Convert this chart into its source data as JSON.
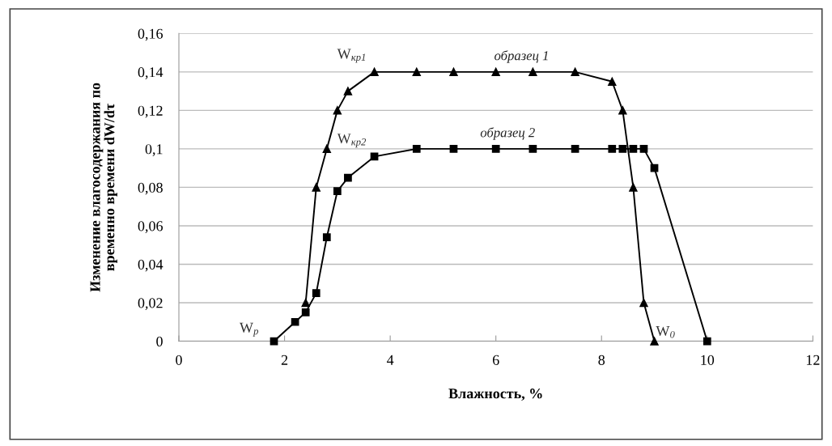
{
  "chart_data": {
    "type": "line",
    "xlabel": "Влажность, %",
    "ylabel": "Изменение влагосодержания по\nвременно времени dW/dτ",
    "series": [
      {
        "name": "образец 1",
        "color": "#000000",
        "marker": "triangle",
        "x": [
          2.4,
          2.6,
          2.8,
          3.0,
          3.2,
          3.7,
          4.5,
          5.2,
          6.0,
          6.7,
          7.5,
          8.2,
          8.4,
          8.6,
          8.8,
          9.0
        ],
        "values": [
          0.02,
          0.08,
          0.1,
          0.12,
          0.13,
          0.14,
          0.14,
          0.14,
          0.14,
          0.14,
          0.14,
          0.135,
          0.12,
          0.08,
          0.02,
          0
        ]
      },
      {
        "name": "образец 2",
        "color": "#000000",
        "marker": "square",
        "x": [
          1.8,
          2.2,
          2.4,
          2.6,
          2.8,
          3.0,
          3.2,
          3.7,
          4.5,
          5.2,
          6.0,
          6.7,
          7.5,
          8.2,
          8.4,
          8.6,
          8.8,
          9.0,
          10.0
        ],
        "values": [
          0,
          0.01,
          0.015,
          0.025,
          0.054,
          0.078,
          0.085,
          0.096,
          0.1,
          0.1,
          0.1,
          0.1,
          0.1,
          0.1,
          0.1,
          0.1,
          0.1,
          0.09,
          0
        ]
      }
    ],
    "annotations": [
      {
        "text": "W$_{р}$",
        "x": 1.8,
        "y": 0
      },
      {
        "text": "W$_{кр1}$",
        "x": 3.7,
        "y": 0.14
      },
      {
        "text": "W$_{кр2}$",
        "x": 3.7,
        "y": 0.096
      },
      {
        "text": "W$_{0}$",
        "x": 9.0,
        "y": 0
      }
    ],
    "xlim": [
      0,
      12
    ],
    "xticks": [
      0,
      2,
      4,
      6,
      8,
      10,
      12
    ],
    "ylim": [
      0,
      0.16
    ],
    "yticks": [
      {
        "value": 0,
        "label": "0"
      },
      {
        "value": 0.02,
        "label": "0,02"
      },
      {
        "value": 0.04,
        "label": "0,04"
      },
      {
        "value": 0.06,
        "label": "0,06"
      },
      {
        "value": 0.08,
        "label": "0,08"
      },
      {
        "value": 0.1,
        "label": "0,1"
      },
      {
        "value": 0.12,
        "label": "0,12"
      },
      {
        "value": 0.14,
        "label": "0,14"
      },
      {
        "value": 0.16,
        "label": "0,16"
      }
    ],
    "grid": "y",
    "legend": false,
    "line_style": "solid"
  }
}
